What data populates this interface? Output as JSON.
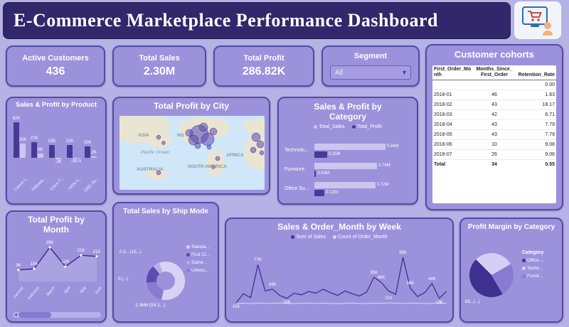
{
  "header": {
    "title": "E-Commerce Marketplace Performance Dashboard",
    "logo_icon": "shopping-cart-logo"
  },
  "colors": {
    "page_bg": "#b5b2e6",
    "header_bg": "#31276a",
    "card_bg": "#9c92dc",
    "card_border": "#564aa5",
    "accent_dark": "#3f3190",
    "accent_mid": "#8a7bd2",
    "accent_light": "#d6cff3"
  },
  "kpis": [
    {
      "label": "Active Customers",
      "value": "436"
    },
    {
      "label": "Total Sales",
      "value": "2.30M"
    },
    {
      "label": "Total Profit",
      "value": "286.82K"
    }
  ],
  "segment": {
    "label": "Segment",
    "value": "All"
  },
  "cohorts": {
    "title": "Customer cohorts",
    "columns": [
      "First_Order_Month",
      "Months_Since_First_Order",
      "Retention_Rate"
    ],
    "rows": [
      [
        "",
        "",
        "0.00"
      ],
      [
        "2018-01",
        "46",
        "1.63"
      ],
      [
        "2018-02",
        "43",
        "18.17"
      ],
      [
        "2018-03",
        "42",
        "6.71"
      ],
      [
        "2018-04",
        "43",
        "7.79"
      ],
      [
        "2018-05",
        "43",
        "7.79"
      ],
      [
        "2018-06",
        "10",
        "9.08"
      ],
      [
        "2018-07",
        "26",
        "9.06"
      ]
    ],
    "total_row": [
      "Total",
      "34",
      "0.55"
    ]
  },
  "chart_data": [
    {
      "id": "sales-profit-by-product",
      "type": "bar",
      "title": "Sales & Profit by Product",
      "categories": [
        "Canon i...",
        "Fellowe...",
        "Cisco T...",
        "HON 5...",
        "GBC Do..."
      ],
      "series": [
        {
          "name": "Sales",
          "color": "#463a96",
          "values": [
            62,
            27,
            23,
            22,
            20
          ],
          "labels": [
            "62K",
            "27K",
            "23K",
            "22K",
            "20K"
          ]
        },
        {
          "name": "Profit",
          "color": "#cdc5f0",
          "values": [
            25,
            8,
            -2,
            -2e-05,
            2
          ],
          "labels": [
            "25K",
            "8K",
            "-2K",
            "-2E-5",
            "2K"
          ]
        }
      ],
      "unit": "K"
    },
    {
      "id": "total-profit-by-city",
      "type": "map",
      "title": "Total Profit by City",
      "labels": [
        "ASIA",
        "NO",
        "Pacific Ocean",
        "AFRICA",
        "AUSTRALIA",
        "SOUTH AMERICA"
      ]
    },
    {
      "id": "sales-profit-by-category",
      "type": "bar",
      "title": "Sales & Profit by Category",
      "legend": [
        "Total_Sales",
        "Total_Profit"
      ],
      "categories": [
        "Technolo...",
        "Furniture",
        "Office Su..."
      ],
      "series": [
        {
          "name": "Total_Sales",
          "color": "#cdc5f0",
          "values": [
            0.84,
            0.74,
            0.72
          ],
          "labels": [
            "0.84M",
            "0.74M",
            "0.72M"
          ]
        },
        {
          "name": "Total_Profit",
          "color": "#463a96",
          "values": [
            0.15,
            0.02,
            0.12
          ],
          "labels": [
            "0.15M",
            "0.02M",
            "0.12M"
          ]
        }
      ],
      "unit": "M"
    },
    {
      "id": "total-profit-by-month",
      "type": "line",
      "title": "Total Profit by Month",
      "categories": [
        "January",
        "February",
        "March",
        "April",
        "May",
        "June"
      ],
      "values": [
        9,
        10,
        29,
        12,
        22,
        21
      ],
      "labels": [
        "9K",
        "10K",
        "29K",
        "12K",
        "22K",
        "21K"
      ],
      "unit": "K"
    },
    {
      "id": "total-sales-by-ship-mode",
      "type": "donut",
      "title": "Total Sales by Ship Mode",
      "segments": [
        {
          "label": "Standa...",
          "pct": 59.1,
          "data_label": "1.36M (59.1...)",
          "color": "#d9d2f4"
        },
        {
          "label": "First Cl...",
          "pct": 15.2,
          "data_label": "0.3... (15...)",
          "color": "#5b4cae"
        },
        {
          "label": "Same ...",
          "pct": 5.9,
          "data_label": "0.(...)",
          "color": "#b9aee9"
        },
        {
          "label": "Unkno...",
          "pct": 19.8,
          "data_label": "",
          "color": "#8a7ad0"
        }
      ]
    },
    {
      "id": "sales-order-month-by-week",
      "type": "line",
      "title": "Sales & Order_Month by Week",
      "legend": [
        "Sum of Sales",
        "Count of Order_Month"
      ],
      "colors": [
        "#3f3190",
        "#dcd8f0"
      ],
      "sales_values": [
        10,
        26,
        19,
        77,
        31,
        34,
        23,
        18,
        27,
        24,
        30,
        27,
        34,
        28,
        23,
        31,
        26,
        22,
        29,
        55,
        46,
        31,
        25,
        90,
        36,
        21,
        28,
        44,
        18,
        30
      ],
      "sales_point_labels": [
        {
          "i": 0,
          "t": "10K"
        },
        {
          "i": 3,
          "t": "77K"
        },
        {
          "i": 5,
          "t": "34K"
        },
        {
          "i": 7,
          "t": "18K"
        },
        {
          "i": 19,
          "t": "55K"
        },
        {
          "i": 20,
          "t": "46K"
        },
        {
          "i": 23,
          "t": "90K"
        },
        {
          "i": 24,
          "t": "36K"
        },
        {
          "i": 27,
          "t": "44K"
        },
        {
          "i": 28,
          "t": "18K"
        }
      ],
      "count_values": [
        370,
        385,
        360,
        395,
        380,
        370,
        390,
        375,
        365,
        380,
        390,
        370,
        385,
        375,
        360,
        380,
        395,
        370,
        365,
        385,
        375,
        399,
        380,
        370,
        390,
        380,
        365,
        375,
        385,
        370
      ],
      "count_point_labels": [
        {
          "i": 21,
          "t": "399"
        }
      ],
      "unit": "K"
    },
    {
      "id": "profit-margin-by-category",
      "type": "pie",
      "title": "Profit Margin by Category",
      "legend_title": "Category",
      "segments": [
        {
          "label": "Office ...",
          "pct": 46,
          "color": "#3f3190"
        },
        {
          "label": "Techn...",
          "pct": 29,
          "color": "#d6cff3"
        },
        {
          "label": "Furnit...",
          "pct": 25,
          "color": "#8a7bd2"
        }
      ],
      "data_label": "83...(...)"
    }
  ]
}
